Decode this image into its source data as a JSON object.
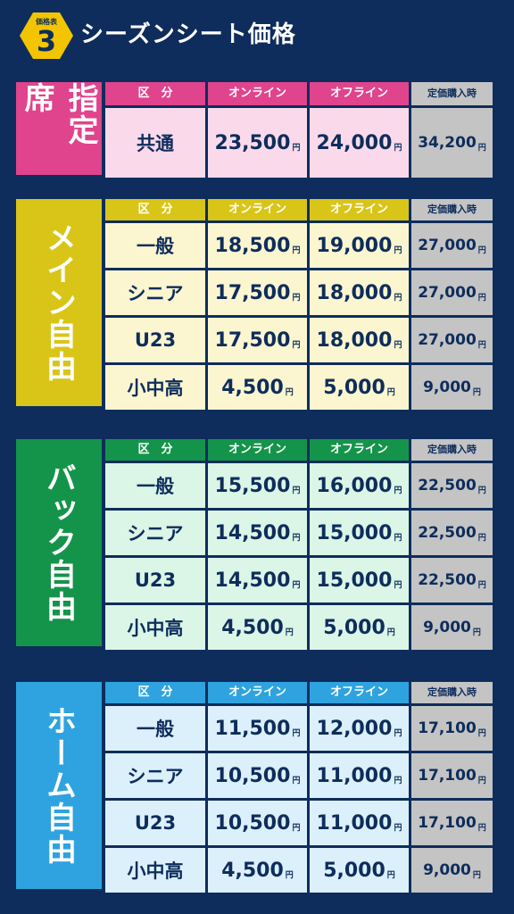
{
  "header": {
    "badge_label": "価格表",
    "badge_number": "3",
    "title": "シーズンシート価格"
  },
  "columns": {
    "category": "区　分",
    "online": "オンライン",
    "offline": "オフライン",
    "teika": "定価購入時"
  },
  "currency": "円",
  "sections": [
    {
      "label": "指定席",
      "color": "#e0448c",
      "light": "#fadaea",
      "rows": [
        {
          "category": "共通",
          "online": "23,500",
          "offline": "24,000",
          "teika": "34,200"
        }
      ]
    },
    {
      "label": "メイン自由",
      "color": "#d9c517",
      "light": "#fbf6cf",
      "rows": [
        {
          "category": "一般",
          "online": "18,500",
          "offline": "19,000",
          "teika": "27,000"
        },
        {
          "category": "シニア",
          "online": "17,500",
          "offline": "18,000",
          "teika": "27,000"
        },
        {
          "category": "U23",
          "online": "17,500",
          "offline": "18,000",
          "teika": "27,000"
        },
        {
          "category": "小中高",
          "online": "4,500",
          "offline": "5,000",
          "teika": "9,000"
        }
      ]
    },
    {
      "label": "バック自由",
      "color": "#14944a",
      "light": "#dbf5e6",
      "rows": [
        {
          "category": "一般",
          "online": "15,500",
          "offline": "16,000",
          "teika": "22,500"
        },
        {
          "category": "シニア",
          "online": "14,500",
          "offline": "15,000",
          "teika": "22,500"
        },
        {
          "category": "U23",
          "online": "14,500",
          "offline": "15,000",
          "teika": "22,500"
        },
        {
          "category": "小中高",
          "online": "4,500",
          "offline": "5,000",
          "teika": "9,000"
        }
      ]
    },
    {
      "label": "ホーム自由",
      "color": "#2ea3df",
      "light": "#dbf0fb",
      "rows": [
        {
          "category": "一般",
          "online": "11,500",
          "offline": "12,000",
          "teika": "17,100"
        },
        {
          "category": "シニア",
          "online": "10,500",
          "offline": "11,000",
          "teika": "17,100"
        },
        {
          "category": "U23",
          "online": "10,500",
          "offline": "11,000",
          "teika": "17,100"
        },
        {
          "category": "小中高",
          "online": "4,500",
          "offline": "5,000",
          "teika": "9,000"
        }
      ]
    }
  ]
}
